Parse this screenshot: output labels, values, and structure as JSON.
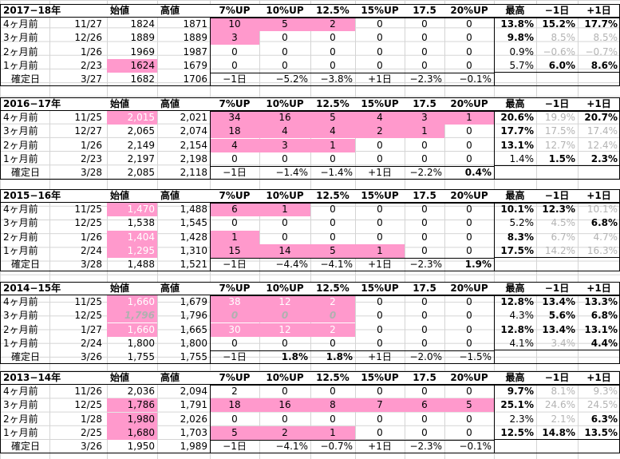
{
  "headers": [
    "始値",
    "高値",
    "7%UP",
    "10%UP",
    "12.5%",
    "15%UP",
    "17.5",
    "20%UP",
    "最高",
    "−1日",
    "+1日"
  ],
  "sections": [
    {
      "year": "2017−18年",
      "rows": [
        {
          "label": "4ヶ月前",
          "date": "11/27",
          "open": "1824",
          "high": "1871",
          "up": [
            "10",
            "5",
            "2",
            "0",
            "0",
            "0"
          ],
          "max": "13.8%",
          "m1": "15.2%",
          "p1": "17.7%"
        },
        {
          "label": "3ヶ月前",
          "date": "12/26",
          "open": "1889",
          "high": "1889",
          "up": [
            "3",
            "0",
            "0",
            "0",
            "0",
            "0"
          ],
          "max": "9.8%",
          "m1": "8.5%",
          "p1": "8.5%"
        },
        {
          "label": "2ヶ月前",
          "date": "1/26",
          "open": "1969",
          "high": "1987",
          "up": [
            "0",
            "0",
            "0",
            "0",
            "0",
            "0"
          ],
          "max": "0.9%",
          "m1": "−0.6%",
          "p1": "−0.7%"
        },
        {
          "label": "1ヶ月前",
          "date": "2/23",
          "open": "1624",
          "high": "1679",
          "up": [
            "0",
            "0",
            "0",
            "0",
            "0",
            "0"
          ],
          "max": "5.7%",
          "m1": "6.0%",
          "p1": "8.6%"
        }
      ],
      "confirm": {
        "label": "確定日",
        "date": "3/27",
        "open": "1682",
        "high": "1706",
        "up": [
          "−1日",
          "−5.2%",
          "−3.8%",
          "+1日",
          "−2.3%",
          "−0.1%"
        ]
      }
    },
    {
      "year": "2016−17年",
      "rows": [
        {
          "label": "4ヶ月前",
          "date": "11/25",
          "open": "2,015",
          "high": "2,021",
          "up": [
            "34",
            "16",
            "5",
            "4",
            "3",
            "1"
          ],
          "max": "20.6%",
          "m1": "19.9%",
          "p1": "20.7%"
        },
        {
          "label": "3ヶ月前",
          "date": "12/27",
          "open": "2,065",
          "high": "2,074",
          "up": [
            "18",
            "4",
            "4",
            "2",
            "1",
            "0"
          ],
          "max": "17.7%",
          "m1": "17.5%",
          "p1": "17.4%"
        },
        {
          "label": "2ヶ月前",
          "date": "1/26",
          "open": "2,149",
          "high": "2,154",
          "up": [
            "4",
            "3",
            "1",
            "0",
            "0",
            "0"
          ],
          "max": "13.1%",
          "m1": "12.7%",
          "p1": "12.4%"
        },
        {
          "label": "1ヶ月前",
          "date": "2/23",
          "open": "2,197",
          "high": "2,198",
          "up": [
            "0",
            "0",
            "0",
            "0",
            "0",
            "0"
          ],
          "max": "1.4%",
          "m1": "1.5%",
          "p1": "2.3%"
        }
      ],
      "confirm": {
        "label": "確定日",
        "date": "3/28",
        "open": "2,085",
        "high": "2,118",
        "up": [
          "−1日",
          "−1.4%",
          "−1.4%",
          "+1日",
          "−2.2%",
          "0.4%"
        ]
      }
    },
    {
      "year": "2015−16年",
      "rows": [
        {
          "label": "4ヶ月前",
          "date": "11/25",
          "open": "1,470",
          "high": "1,488",
          "up": [
            "6",
            "1",
            "0",
            "0",
            "0",
            "0"
          ],
          "max": "10.1%",
          "m1": "12.3%",
          "p1": "10.1%"
        },
        {
          "label": "3ヶ月前",
          "date": "12/25",
          "open": "1,538",
          "high": "1,545",
          "up": [
            "0",
            "0",
            "0",
            "0",
            "0",
            "0"
          ],
          "max": "5.2%",
          "m1": "4.5%",
          "p1": "6.8%"
        },
        {
          "label": "2ヶ月前",
          "date": "1/26",
          "open": "1,404",
          "high": "1,428",
          "up": [
            "1",
            "0",
            "0",
            "0",
            "0",
            "0"
          ],
          "max": "8.3%",
          "m1": "6.7%",
          "p1": "4.7%"
        },
        {
          "label": "1ヶ月前",
          "date": "2/24",
          "open": "1,295",
          "high": "1,310",
          "up": [
            "15",
            "14",
            "5",
            "1",
            "0",
            "0"
          ],
          "max": "17.5%",
          "m1": "14.2%",
          "p1": "16.3%"
        }
      ],
      "confirm": {
        "label": "確定日",
        "date": "3/28",
        "open": "1,488",
        "high": "1,521",
        "up": [
          "−1日",
          "−4.4%",
          "−4.1%",
          "+1日",
          "−2.3%",
          "1.9%"
        ]
      }
    },
    {
      "year": "2014−15年",
      "rows": [
        {
          "label": "4ヶ月前",
          "date": "11/25",
          "open": "1,660",
          "high": "1,679",
          "up": [
            "38",
            "12",
            "2",
            "0",
            "0",
            "0"
          ],
          "max": "12.8%",
          "m1": "13.4%",
          "p1": "13.3%"
        },
        {
          "label": "3ヶ月前",
          "date": "12/25",
          "open": "1,796",
          "high": "1,796",
          "up": [
            "0",
            "0",
            "0",
            "0",
            "0",
            "0"
          ],
          "max": "4.3%",
          "m1": "5.6%",
          "p1": "6.8%"
        },
        {
          "label": "2ヶ月前",
          "date": "1/27",
          "open": "1,660",
          "high": "1,665",
          "up": [
            "30",
            "12",
            "2",
            "0",
            "0",
            "0"
          ],
          "max": "12.8%",
          "m1": "13.4%",
          "p1": "13.1%"
        },
        {
          "label": "1ヶ月前",
          "date": "2/24",
          "open": "1,800",
          "high": "1,800",
          "up": [
            "0",
            "0",
            "0",
            "0",
            "0",
            "0"
          ],
          "max": "4.1%",
          "m1": "3.4%",
          "p1": "4.4%"
        }
      ],
      "confirm": {
        "label": "確定日",
        "date": "3/26",
        "open": "1,755",
        "high": "1,755",
        "up": [
          "−1日",
          "1.8%",
          "1.8%",
          "+1日",
          "−2.0%",
          "−1.5%"
        ]
      }
    },
    {
      "year": "2013−14年",
      "rows": [
        {
          "label": "4ヶ月前",
          "date": "11/26",
          "open": "2,036",
          "high": "2,094",
          "up": [
            "2",
            "0",
            "0",
            "0",
            "0",
            "0"
          ],
          "max": "9.7%",
          "m1": "8.1%",
          "p1": "9.3%"
        },
        {
          "label": "3ヶ月前",
          "date": "12/25",
          "open": "1,786",
          "high": "1,791",
          "up": [
            "18",
            "16",
            "8",
            "7",
            "6",
            "5"
          ],
          "max": "25.1%",
          "m1": "24.6%",
          "p1": "24.5%"
        },
        {
          "label": "2ヶ月前",
          "date": "1/28",
          "open": "1,980",
          "high": "2,026",
          "up": [
            "0",
            "0",
            "0",
            "0",
            "0",
            "0"
          ],
          "max": "2.3%",
          "m1": "2.1%",
          "p1": "6.3%"
        },
        {
          "label": "1ヶ月前",
          "date": "2/25",
          "open": "1,680",
          "high": "1,703",
          "up": [
            "5",
            "2",
            "1",
            "0",
            "0",
            "0"
          ],
          "max": "12.5%",
          "m1": "14.8%",
          "p1": "13.5%"
        }
      ],
      "confirm": {
        "label": "確定日",
        "date": "3/26",
        "open": "1,950",
        "high": "1,989",
        "up": [
          "−1日",
          "−4.1%",
          "−0.7%",
          "+1日",
          "−2.3%",
          "−0.1%"
        ]
      }
    }
  ],
  "styles": {
    "pink": "#ff99cc",
    "grid": "#d4d4d4"
  }
}
